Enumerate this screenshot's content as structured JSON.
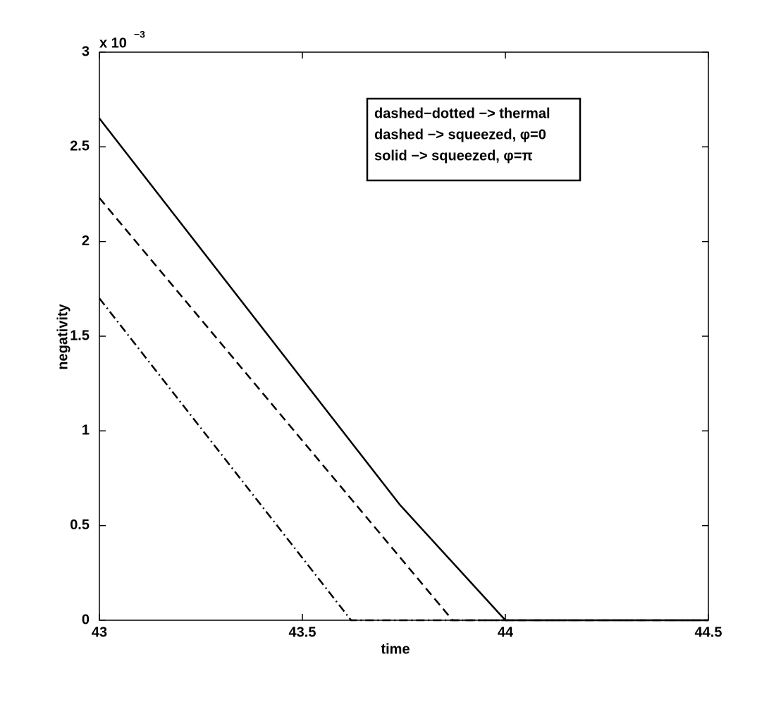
{
  "chart_data": {
    "type": "line",
    "x_label": "time",
    "y_label": "negativity",
    "y_multiplier": {
      "base": "x 10",
      "exponent": "−3"
    },
    "xlim": [
      43,
      44.5
    ],
    "xticks": [
      43,
      43.5,
      44,
      44.5
    ],
    "ylim": [
      0,
      3
    ],
    "yticks": [
      0,
      0.5,
      1,
      1.5,
      2,
      2.5,
      3
    ],
    "grid": false,
    "legend": "upper right",
    "series": [
      {
        "name": "dashed−dotted −>  thermal",
        "color": "#000000",
        "style": "dashdot",
        "x": [
          43,
          43.62,
          44.5
        ],
        "values": [
          1.7,
          0,
          0
        ]
      },
      {
        "name": "dashed −> squeezed, φ=0",
        "color": "#000000",
        "style": "dashed",
        "x": [
          43,
          43.87,
          44.5
        ],
        "values": [
          2.23,
          0,
          0
        ]
      },
      {
        "name": "solid −> squeezed, φ=π",
        "color": "#000000",
        "style": "solid",
        "x": [
          43,
          43.74,
          44,
          44.5
        ],
        "values": [
          2.65,
          0.61,
          0,
          0
        ]
      }
    ]
  }
}
